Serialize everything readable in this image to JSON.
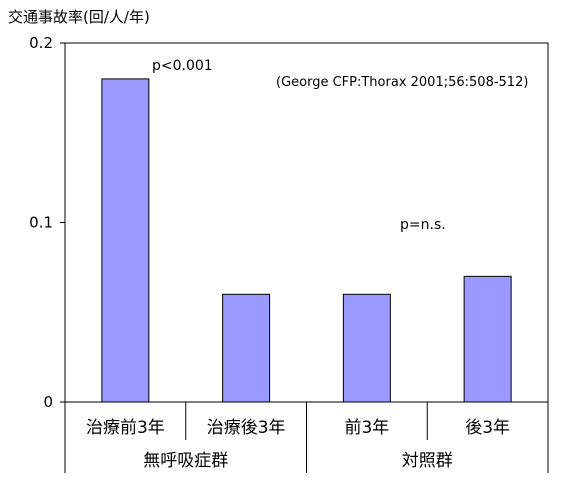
{
  "chart_data": {
    "type": "bar",
    "ylabel": "交通事故率(回/人/年)",
    "ylim": [
      0,
      0.2
    ],
    "yticks": [
      "0",
      "0.1",
      "0.2"
    ],
    "yticks_values": [
      0,
      0.1,
      0.2
    ],
    "categories": [
      "治療前3年",
      "治療後3年",
      "前3年",
      "後3年"
    ],
    "values": [
      0.18,
      0.06,
      0.06,
      0.07
    ],
    "groups": [
      {
        "label": "無呼吸症群",
        "span": [
          0,
          1
        ]
      },
      {
        "label": "対照群",
        "span": [
          2,
          3
        ]
      }
    ],
    "annotations": {
      "p_left": "p<0.001",
      "p_right": "p=n.s.",
      "citation": "(George CFP:Thorax 2001;56:508-512)"
    },
    "bar_color": "#9999ff",
    "grid": false
  }
}
